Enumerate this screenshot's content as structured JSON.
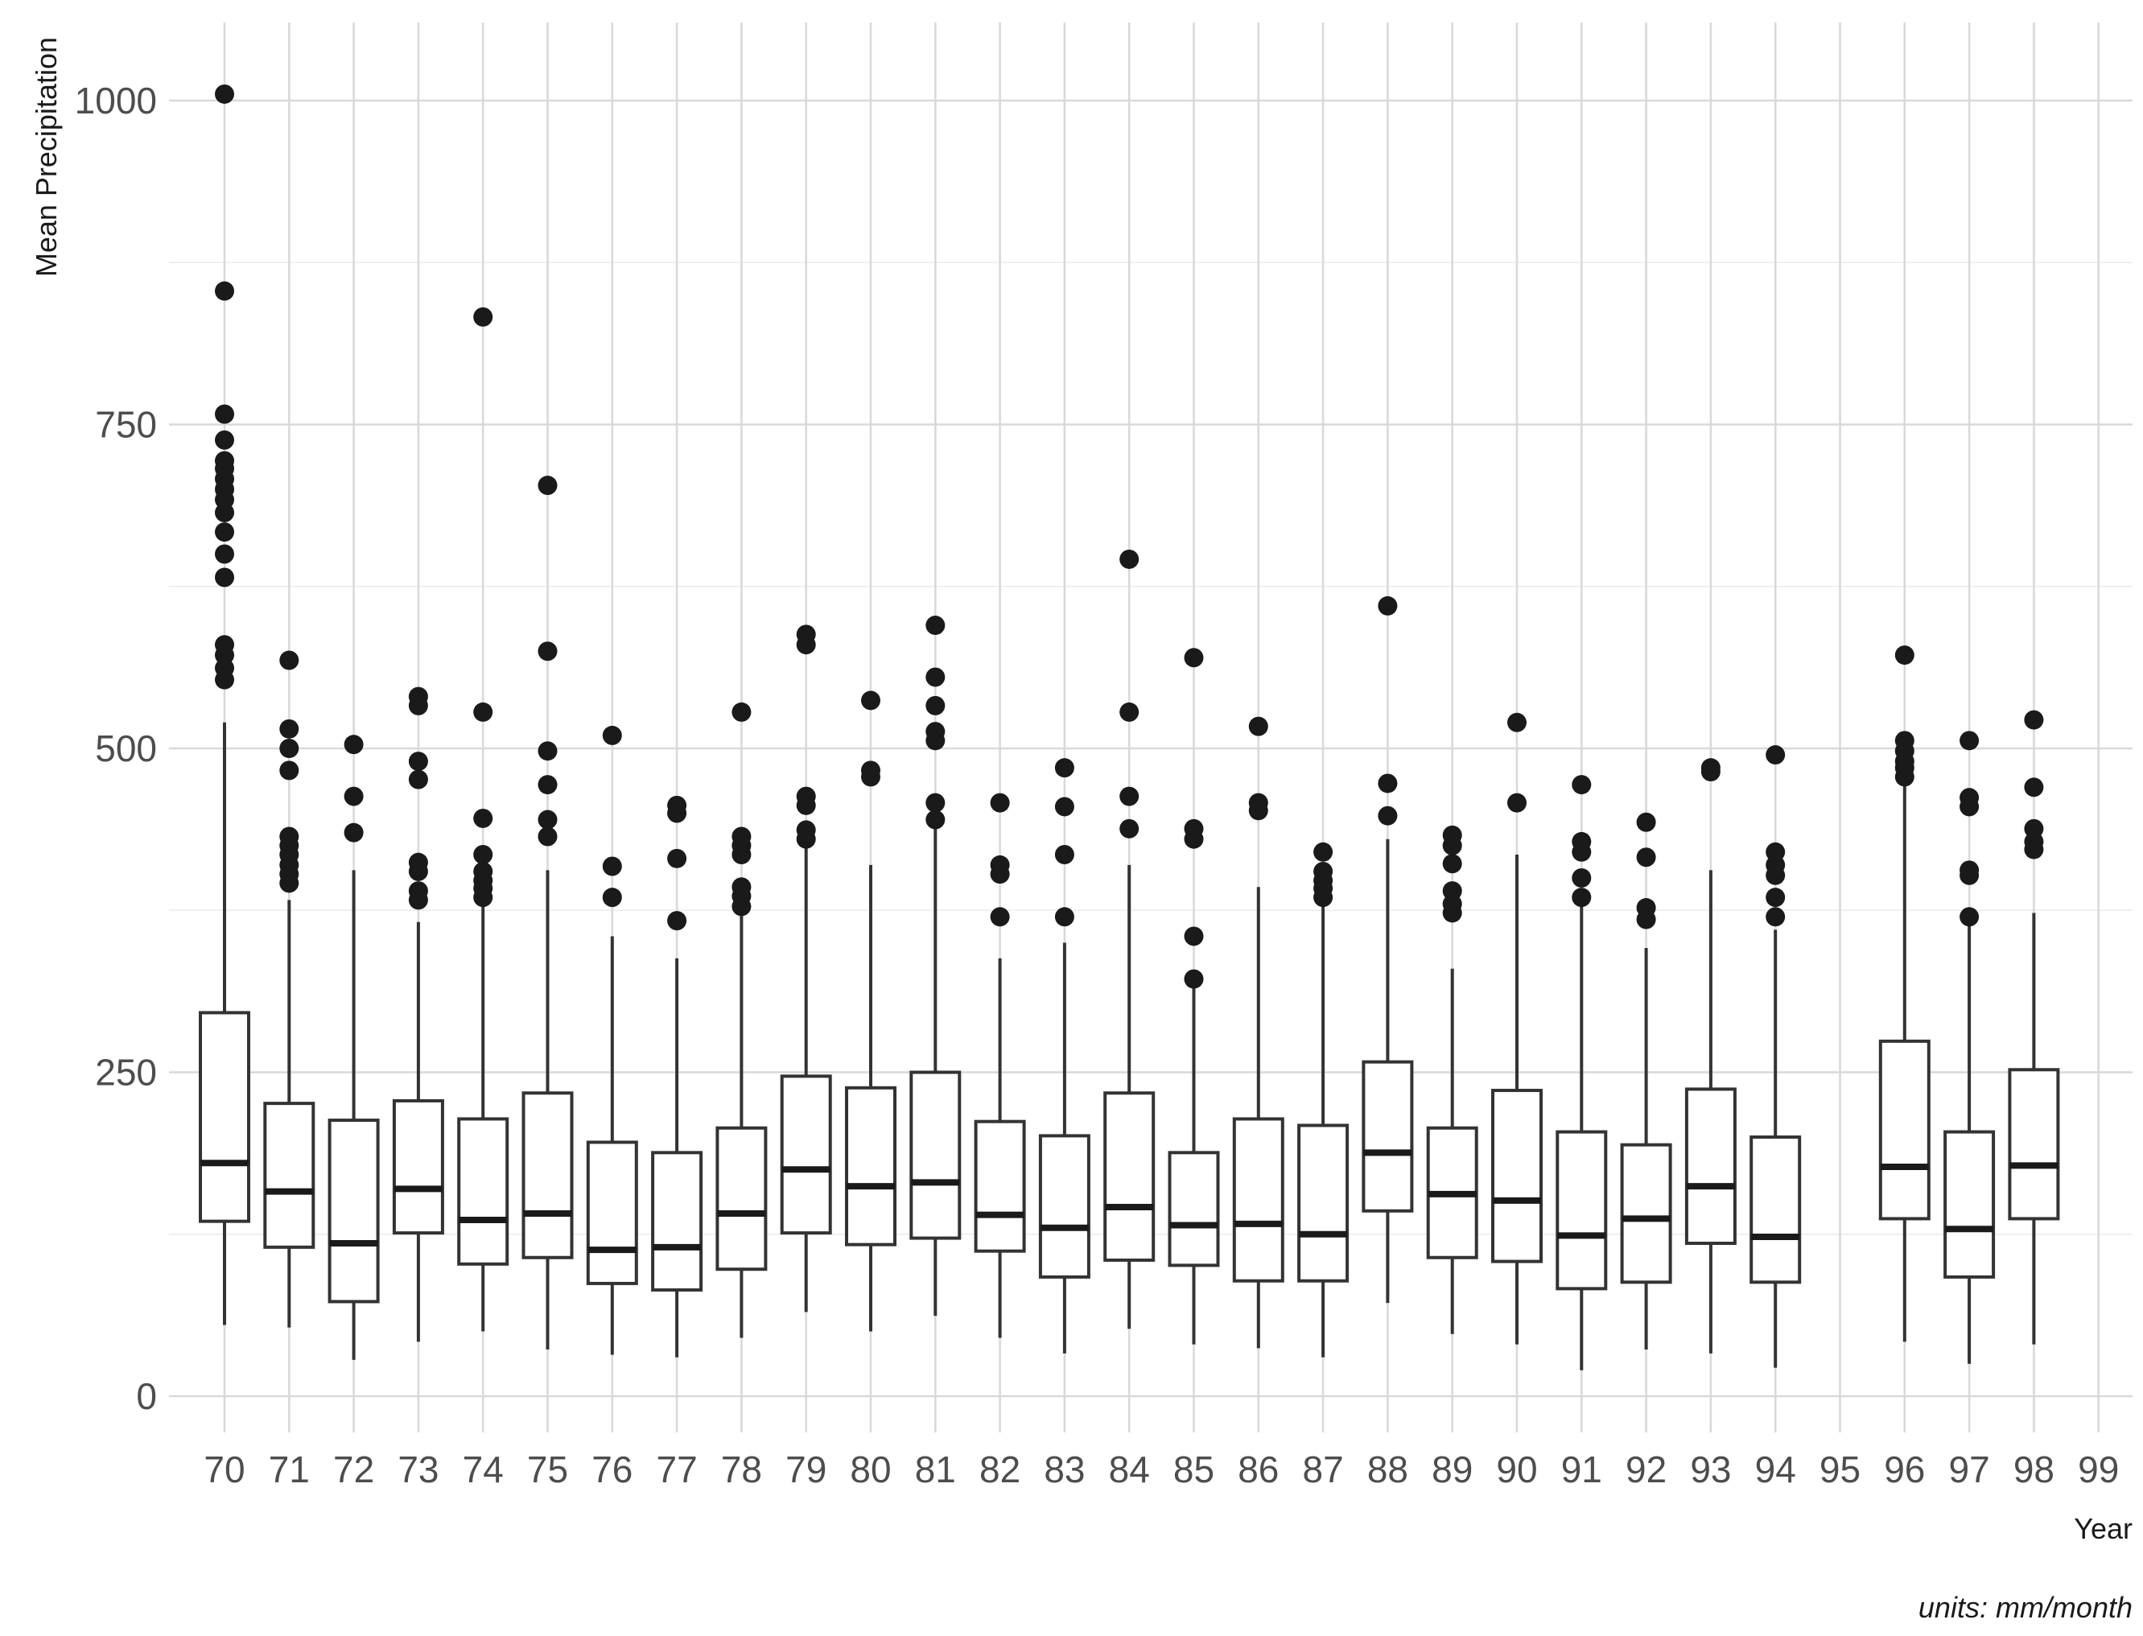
{
  "chart_data": {
    "type": "boxplot",
    "title": "",
    "xlabel": "Year",
    "ylabel": "Mean Precipitation",
    "caption": "units: mm/month",
    "ylim": [
      -30,
      1050
    ],
    "yticks": [
      0,
      250,
      500,
      750,
      1000
    ],
    "yticklabels": [
      "0",
      "250",
      "500",
      "750",
      "1000"
    ],
    "grid": true,
    "legend": "none",
    "categories": [
      "70",
      "71",
      "72",
      "73",
      "74",
      "75",
      "76",
      "77",
      "78",
      "79",
      "80",
      "81",
      "82",
      "83",
      "84",
      "85",
      "86",
      "87",
      "88",
      "89",
      "90",
      "91",
      "92",
      "93",
      "94",
      "95",
      "96",
      "97",
      "98",
      "99"
    ],
    "series": [
      {
        "x": "70",
        "low": 55,
        "q1": 135,
        "median": 180,
        "q3": 296,
        "high": 520,
        "outliers": [
          553,
          562,
          572,
          580,
          632,
          650,
          667,
          682,
          692,
          700,
          708,
          716,
          722,
          738,
          758,
          853,
          1005
        ]
      },
      {
        "x": "71",
        "low": 53,
        "q1": 115,
        "median": 158,
        "q3": 226,
        "high": 383,
        "outliers": [
          396,
          403,
          410,
          418,
          425,
          432,
          483,
          500,
          515,
          568
        ]
      },
      {
        "x": "72",
        "low": 28,
        "q1": 73,
        "median": 118,
        "q3": 213,
        "high": 406,
        "outliers": [
          435,
          463,
          503
        ]
      },
      {
        "x": "73",
        "low": 42,
        "q1": 126,
        "median": 160,
        "q3": 228,
        "high": 366,
        "outliers": [
          383,
          390,
          405,
          412,
          476,
          490,
          533,
          540
        ]
      },
      {
        "x": "74",
        "low": 50,
        "q1": 102,
        "median": 136,
        "q3": 214,
        "high": 380,
        "outliers": [
          385,
          392,
          398,
          405,
          418,
          446,
          528,
          833
        ]
      },
      {
        "x": "75",
        "low": 36,
        "q1": 107,
        "median": 141,
        "q3": 234,
        "high": 406,
        "outliers": [
          432,
          445,
          472,
          498,
          575,
          703
        ]
      },
      {
        "x": "76",
        "low": 32,
        "q1": 87,
        "median": 113,
        "q3": 196,
        "high": 355,
        "outliers": [
          385,
          409,
          510
        ]
      },
      {
        "x": "77",
        "low": 30,
        "q1": 82,
        "median": 115,
        "q3": 188,
        "high": 338,
        "outliers": [
          367,
          415,
          450,
          456
        ]
      },
      {
        "x": "78",
        "low": 45,
        "q1": 98,
        "median": 141,
        "q3": 207,
        "high": 372,
        "outliers": [
          378,
          386,
          393,
          418,
          425,
          432,
          528
        ]
      },
      {
        "x": "79",
        "low": 65,
        "q1": 126,
        "median": 175,
        "q3": 247,
        "high": 425,
        "outliers": [
          430,
          437,
          456,
          463,
          580,
          588
        ]
      },
      {
        "x": "80",
        "low": 50,
        "q1": 117,
        "median": 162,
        "q3": 238,
        "high": 410,
        "outliers": [
          478,
          483,
          537
        ]
      },
      {
        "x": "81",
        "low": 62,
        "q1": 122,
        "median": 165,
        "q3": 250,
        "high": 440,
        "outliers": [
          445,
          458,
          506,
          513,
          533,
          555,
          595
        ]
      },
      {
        "x": "82",
        "low": 45,
        "q1": 112,
        "median": 140,
        "q3": 212,
        "high": 338,
        "outliers": [
          370,
          403,
          410,
          458
        ]
      },
      {
        "x": "83",
        "low": 33,
        "q1": 92,
        "median": 130,
        "q3": 201,
        "high": 350,
        "outliers": [
          370,
          418,
          455,
          485
        ]
      },
      {
        "x": "84",
        "low": 52,
        "q1": 105,
        "median": 146,
        "q3": 234,
        "high": 410,
        "outliers": [
          438,
          463,
          528,
          646
        ]
      },
      {
        "x": "85",
        "low": 40,
        "q1": 101,
        "median": 132,
        "q3": 188,
        "high": 316,
        "outliers": [
          322,
          355,
          430,
          438,
          570
        ]
      },
      {
        "x": "86",
        "low": 37,
        "q1": 89,
        "median": 133,
        "q3": 214,
        "high": 393,
        "outliers": [
          452,
          458,
          517
        ]
      },
      {
        "x": "87",
        "low": 30,
        "q1": 89,
        "median": 125,
        "q3": 209,
        "high": 380,
        "outliers": [
          385,
          392,
          398,
          405,
          420
        ]
      },
      {
        "x": "88",
        "low": 72,
        "q1": 143,
        "median": 188,
        "q3": 258,
        "high": 430,
        "outliers": [
          448,
          473,
          610
        ]
      },
      {
        "x": "89",
        "low": 48,
        "q1": 107,
        "median": 156,
        "q3": 207,
        "high": 330,
        "outliers": [
          373,
          380,
          390,
          411,
          425,
          433
        ]
      },
      {
        "x": "90",
        "low": 40,
        "q1": 104,
        "median": 151,
        "q3": 236,
        "high": 418,
        "outliers": [
          458,
          520
        ]
      },
      {
        "x": "91",
        "low": 20,
        "q1": 83,
        "median": 124,
        "q3": 204,
        "high": 380,
        "outliers": [
          385,
          400,
          420,
          428,
          472
        ]
      },
      {
        "x": "92",
        "low": 36,
        "q1": 88,
        "median": 137,
        "q3": 194,
        "high": 346,
        "outliers": [
          368,
          377,
          416,
          443
        ]
      },
      {
        "x": "93",
        "low": 33,
        "q1": 118,
        "median": 162,
        "q3": 237,
        "high": 406,
        "outliers": [
          482,
          485
        ]
      },
      {
        "x": "94",
        "low": 22,
        "q1": 88,
        "median": 123,
        "q3": 200,
        "high": 360,
        "outliers": [
          370,
          385,
          402,
          410,
          420,
          495
        ]
      },
      {
        "x": "95",
        "low": null,
        "q1": null,
        "median": null,
        "q3": null,
        "high": null,
        "outliers": []
      },
      {
        "x": "96",
        "low": 42,
        "q1": 137,
        "median": 177,
        "q3": 274,
        "high": 473,
        "outliers": [
          478,
          485,
          490,
          498,
          506,
          572
        ]
      },
      {
        "x": "97",
        "low": 25,
        "q1": 92,
        "median": 129,
        "q3": 204,
        "high": 368,
        "outliers": [
          370,
          402,
          406,
          455,
          462,
          506
        ]
      },
      {
        "x": "98",
        "low": 40,
        "q1": 137,
        "median": 178,
        "q3": 252,
        "high": 373,
        "outliers": [
          422,
          428,
          438,
          470,
          522
        ]
      },
      {
        "x": "99",
        "low": null,
        "q1": null,
        "median": null,
        "q3": null,
        "high": null,
        "outliers": []
      }
    ]
  }
}
